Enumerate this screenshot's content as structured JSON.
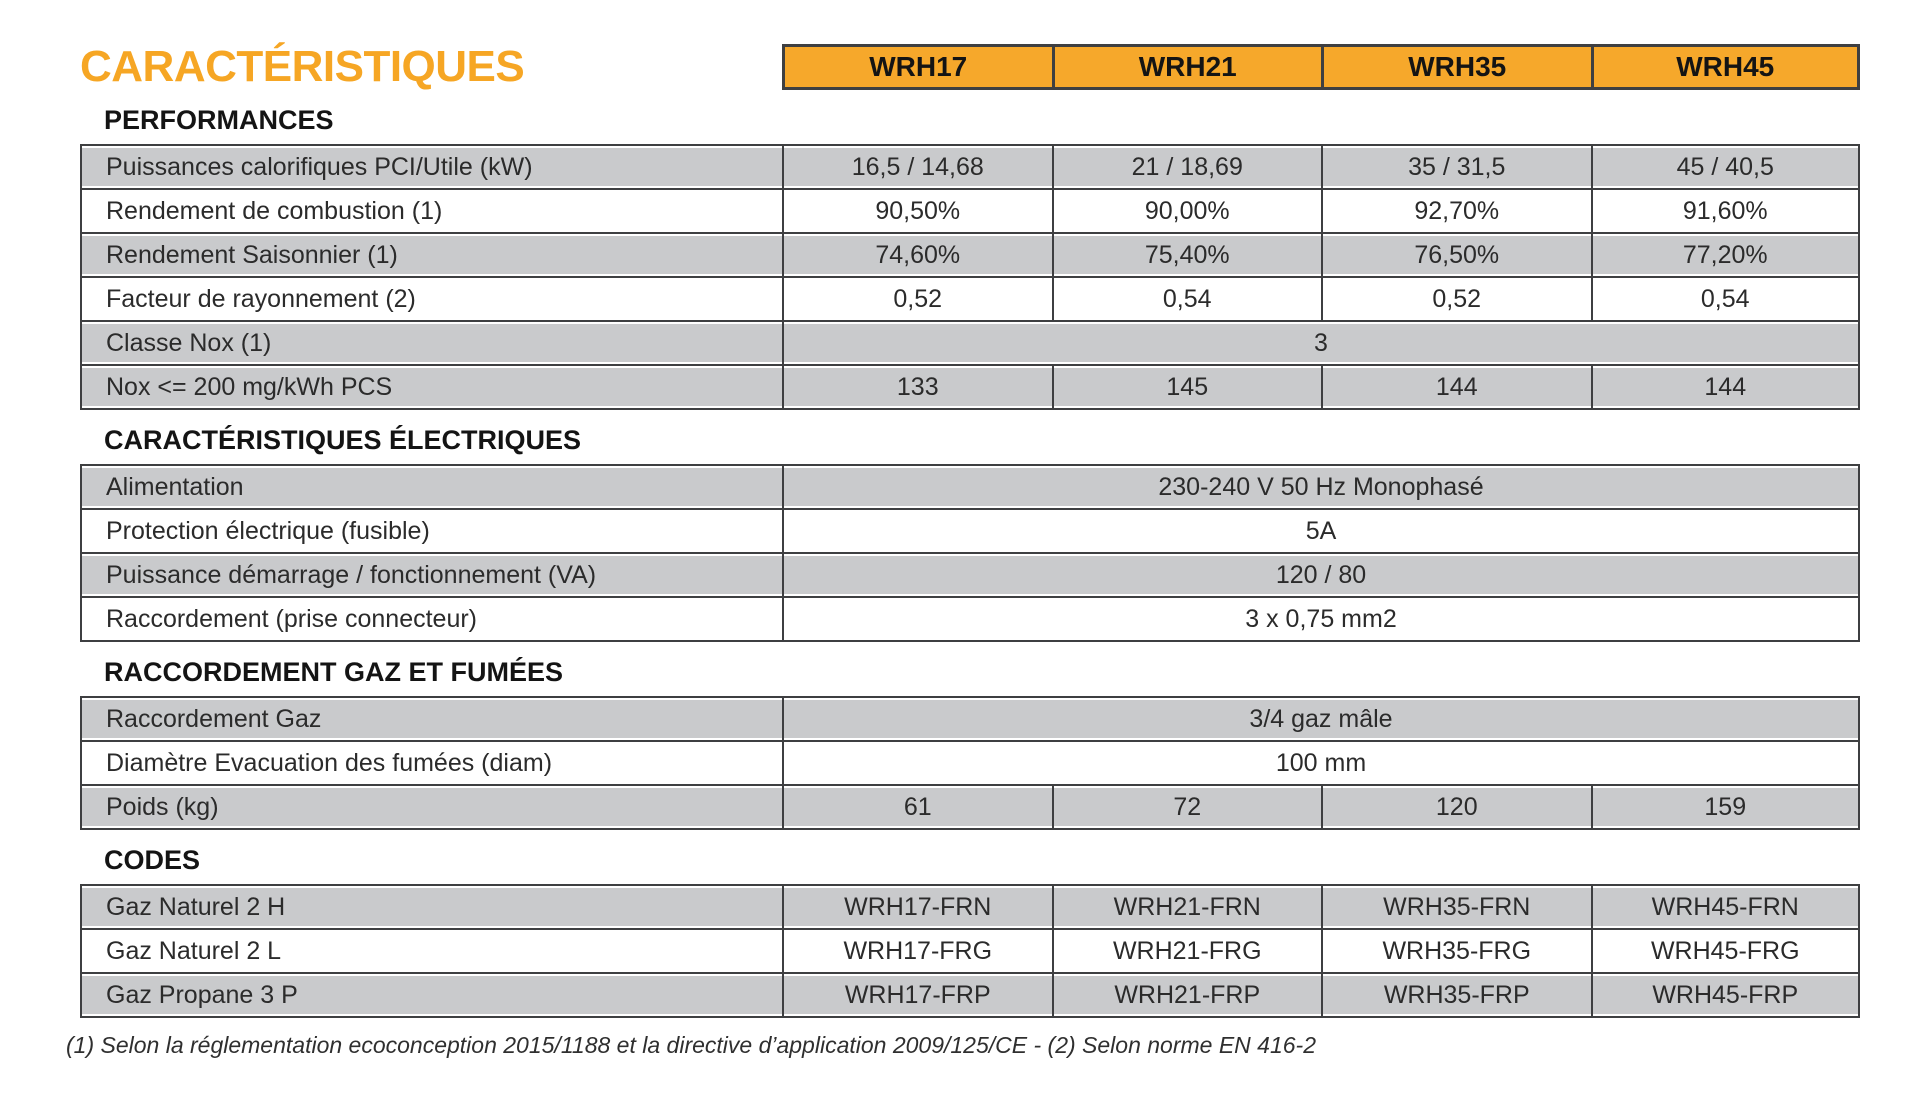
{
  "title": "CARACTÉRISTIQUES",
  "models": [
    "WRH17",
    "WRH21",
    "WRH35",
    "WRH45"
  ],
  "colors": {
    "accent_title": "#F6A624",
    "accent_header": "#F6A82B",
    "row_gray": "#C9CACC",
    "border": "#3E3F41"
  },
  "sections": [
    {
      "heading": "PERFORMANCES",
      "rows": [
        {
          "label": "Puissances calorifiques PCI/Utile (kW)",
          "shaded": true,
          "values": [
            "16,5 / 14,68",
            "21 / 18,69",
            "35 / 31,5",
            "45 / 40,5"
          ]
        },
        {
          "label": "Rendement de combustion (1)",
          "shaded": false,
          "values": [
            "90,50%",
            "90,00%",
            "92,70%",
            "91,60%"
          ]
        },
        {
          "label": "Rendement Saisonnier (1)",
          "shaded": true,
          "values": [
            "74,60%",
            "75,40%",
            "76,50%",
            "77,20%"
          ]
        },
        {
          "label": "Facteur de rayonnement (2)",
          "shaded": false,
          "values": [
            "0,52",
            "0,54",
            "0,52",
            "0,54"
          ]
        },
        {
          "label": "Classe Nox (1)",
          "shaded": true,
          "values": [
            "3"
          ]
        },
        {
          "label": "Nox <= 200 mg/kWh PCS",
          "shaded": true,
          "values": [
            "133",
            "145",
            "144",
            "144"
          ]
        }
      ]
    },
    {
      "heading": "CARACTÉRISTIQUES ÉLECTRIQUES",
      "rows": [
        {
          "label": "Alimentation",
          "shaded": true,
          "values": [
            "230-240 V 50 Hz Monophasé"
          ]
        },
        {
          "label": "Protection électrique (fusible)",
          "shaded": false,
          "values": [
            "5A"
          ]
        },
        {
          "label": "Puissance démarrage / fonctionnement (VA)",
          "shaded": true,
          "values": [
            "120 / 80"
          ]
        },
        {
          "label": "Raccordement (prise connecteur)",
          "shaded": false,
          "values": [
            "3 x 0,75 mm2"
          ]
        }
      ]
    },
    {
      "heading": "RACCORDEMENT GAZ ET FUMÉES",
      "rows": [
        {
          "label": "Raccordement Gaz",
          "shaded": true,
          "values": [
            "3/4 gaz mâle"
          ]
        },
        {
          "label": "Diamètre Evacuation des fumées (diam)",
          "shaded": false,
          "values": [
            "100 mm"
          ]
        },
        {
          "label": "Poids (kg)",
          "shaded": true,
          "values": [
            "61",
            "72",
            "120",
            "159"
          ]
        }
      ]
    },
    {
      "heading": "CODES",
      "rows": [
        {
          "label": "Gaz Naturel 2 H",
          "shaded": true,
          "values": [
            "WRH17-FRN",
            "WRH21-FRN",
            "WRH35-FRN",
            "WRH45-FRN"
          ]
        },
        {
          "label": "Gaz Naturel 2 L",
          "shaded": false,
          "values": [
            "WRH17-FRG",
            "WRH21-FRG",
            "WRH35-FRG",
            "WRH45-FRG"
          ]
        },
        {
          "label": "Gaz Propane 3 P",
          "shaded": true,
          "values": [
            "WRH17-FRP",
            "WRH21-FRP",
            "WRH35-FRP",
            "WRH45-FRP"
          ]
        }
      ]
    }
  ],
  "footnote": "(1) Selon la réglementation ecoconception 2015/1188 et la directive d’application 2009/125/CE - (2) Selon norme EN 416-2"
}
